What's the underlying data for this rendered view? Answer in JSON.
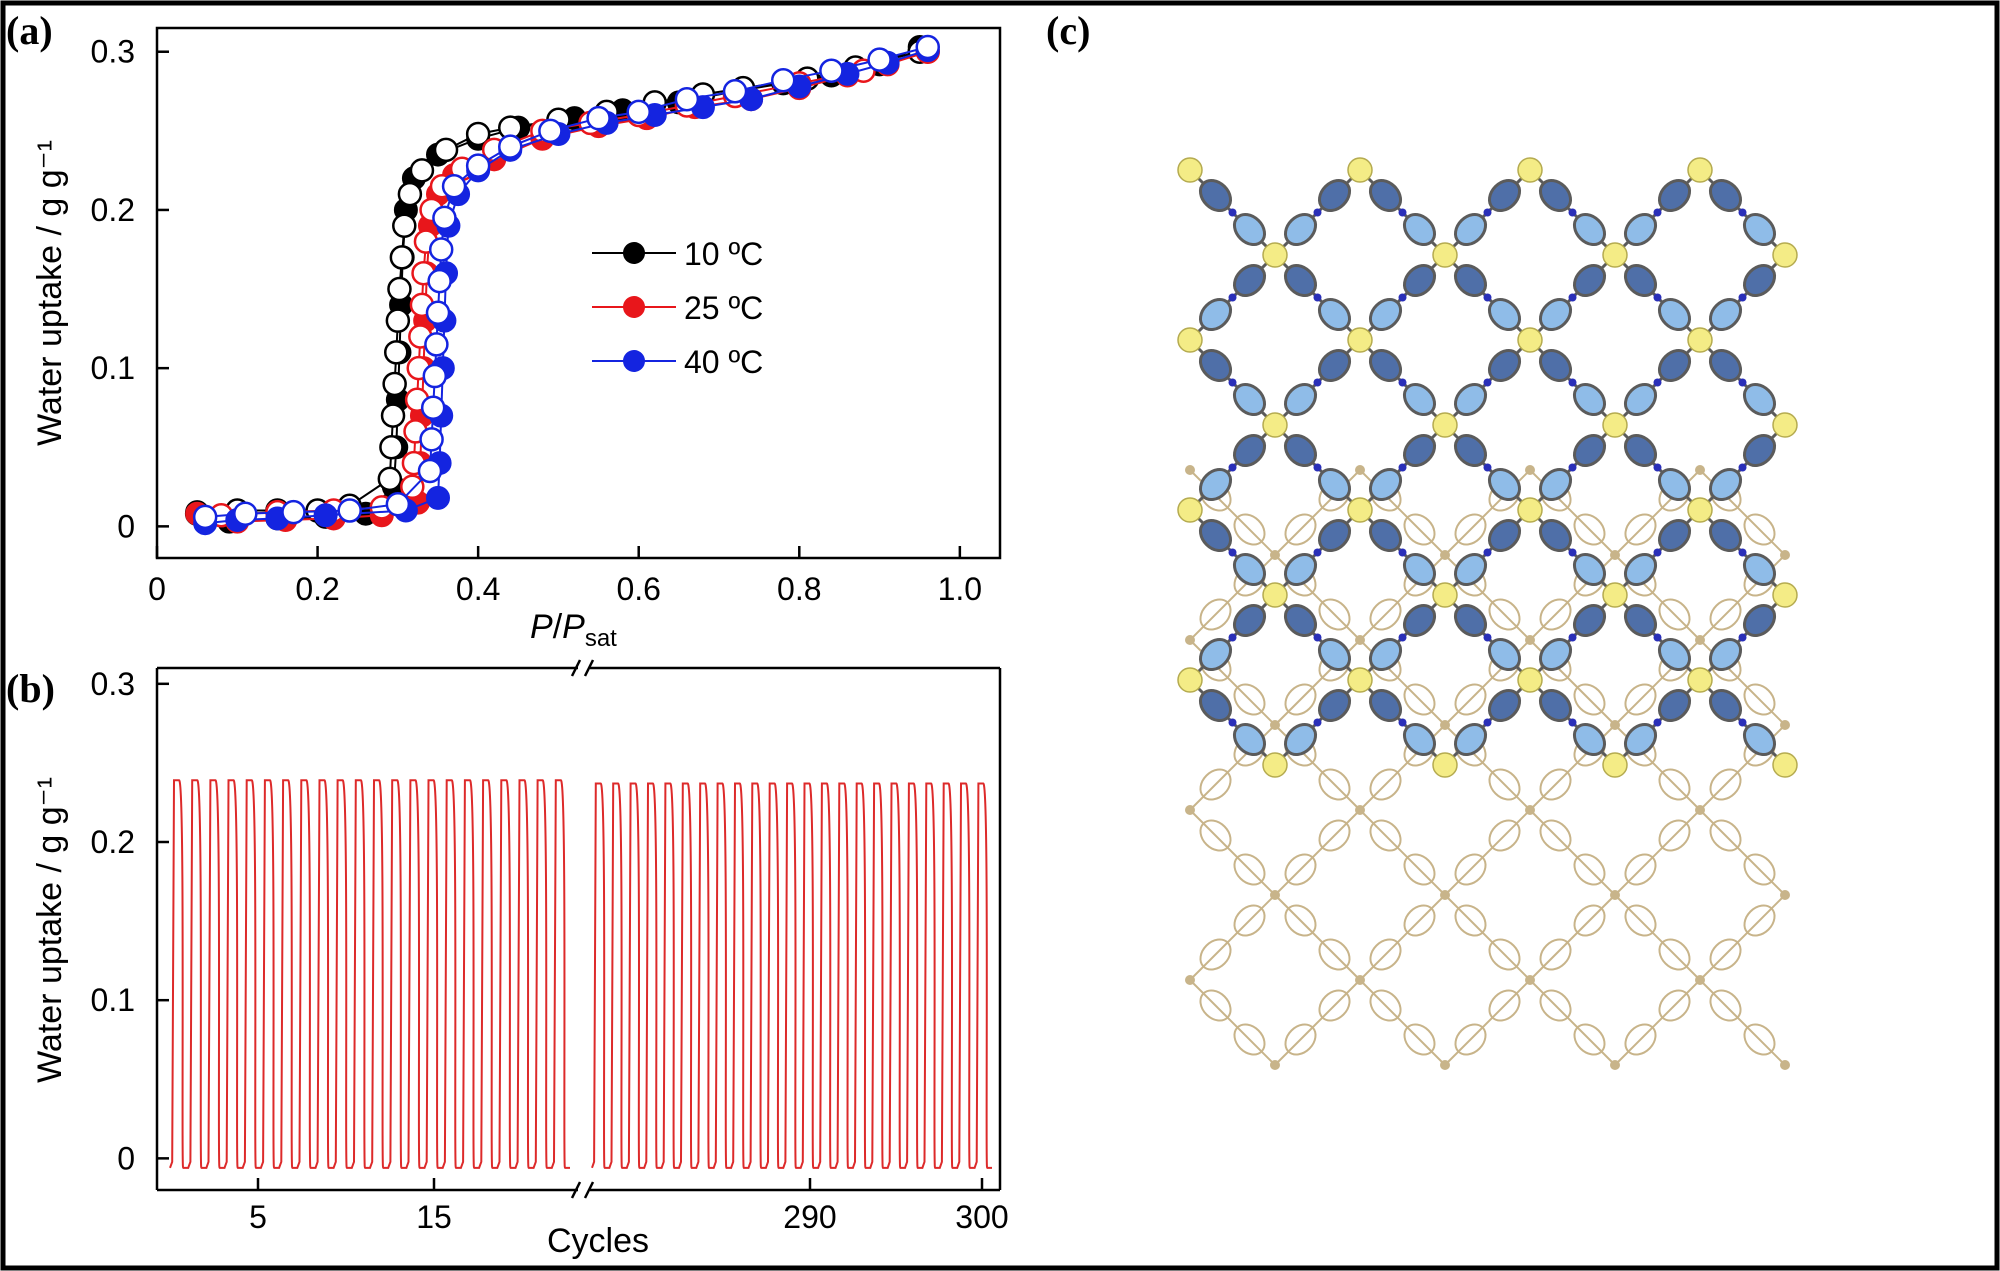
{
  "panel_labels": {
    "a": "(a)",
    "b": "(b)",
    "c": "(c)"
  },
  "colors": {
    "10": "#000000",
    "25": "#e8161b",
    "40": "#1424e0",
    "cycle_line": "#dd2a2a",
    "node": "#f4ec86",
    "ring_dark": "#4f6fa8",
    "ring_light": "#8fbce8",
    "rod": "#5b5b5b",
    "N": "#2a2fb8",
    "framework2": "#c8b48a"
  },
  "chart_data": [
    {
      "type": "scatter",
      "panel": "(a)",
      "xlabel_main": "P",
      "xlabel_sep": "/",
      "xlabel_sub_base": "P",
      "xlabel_sub": "sat",
      "ylabel": "Water uptake / g g⁻¹",
      "xlim": [
        0,
        1.05
      ],
      "ylim": [
        -0.02,
        0.315
      ],
      "xticks": [
        "0",
        "0.2",
        "0.4",
        "0.6",
        "0.8",
        "1.0"
      ],
      "yticks": [
        "0",
        "0.1",
        "0.2",
        "0.3"
      ],
      "legend_position": "center-right",
      "series": [
        {
          "name": "10 ºC",
          "color_key": "10",
          "adsorption": [
            [
              0.05,
              0.009
            ],
            [
              0.09,
              0.003
            ],
            [
              0.15,
              0.005
            ],
            [
              0.21,
              0.006
            ],
            [
              0.26,
              0.008
            ],
            [
              0.295,
              0.025
            ],
            [
              0.298,
              0.05
            ],
            [
              0.3,
              0.08
            ],
            [
              0.302,
              0.11
            ],
            [
              0.304,
              0.14
            ],
            [
              0.306,
              0.17
            ],
            [
              0.31,
              0.2
            ],
            [
              0.32,
              0.22
            ],
            [
              0.35,
              0.235
            ],
            [
              0.4,
              0.245
            ],
            [
              0.45,
              0.252
            ],
            [
              0.52,
              0.258
            ],
            [
              0.58,
              0.263
            ],
            [
              0.65,
              0.268
            ],
            [
              0.72,
              0.275
            ],
            [
              0.78,
              0.28
            ],
            [
              0.84,
              0.285
            ],
            [
              0.9,
              0.292
            ],
            [
              0.95,
              0.303
            ]
          ],
          "desorption": [
            [
              0.95,
              0.3
            ],
            [
              0.87,
              0.29
            ],
            [
              0.81,
              0.283
            ],
            [
              0.73,
              0.277
            ],
            [
              0.68,
              0.273
            ],
            [
              0.62,
              0.268
            ],
            [
              0.56,
              0.262
            ],
            [
              0.5,
              0.257
            ],
            [
              0.44,
              0.252
            ],
            [
              0.4,
              0.248
            ],
            [
              0.36,
              0.238
            ],
            [
              0.33,
              0.225
            ],
            [
              0.315,
              0.21
            ],
            [
              0.308,
              0.19
            ],
            [
              0.305,
              0.17
            ],
            [
              0.302,
              0.15
            ],
            [
              0.3,
              0.13
            ],
            [
              0.298,
              0.11
            ],
            [
              0.296,
              0.09
            ],
            [
              0.294,
              0.07
            ],
            [
              0.292,
              0.05
            ],
            [
              0.29,
              0.03
            ],
            [
              0.24,
              0.013
            ],
            [
              0.2,
              0.01
            ],
            [
              0.15,
              0.01
            ],
            [
              0.1,
              0.01
            ],
            [
              0.05,
              0.008
            ]
          ]
        },
        {
          "name": "25 ºC",
          "color_key": "25",
          "adsorption": [
            [
              0.05,
              0.008
            ],
            [
              0.1,
              0.003
            ],
            [
              0.16,
              0.004
            ],
            [
              0.22,
              0.005
            ],
            [
              0.28,
              0.007
            ],
            [
              0.325,
              0.015
            ],
            [
              0.328,
              0.04
            ],
            [
              0.33,
              0.07
            ],
            [
              0.332,
              0.1
            ],
            [
              0.334,
              0.13
            ],
            [
              0.336,
              0.16
            ],
            [
              0.34,
              0.19
            ],
            [
              0.35,
              0.21
            ],
            [
              0.37,
              0.222
            ],
            [
              0.42,
              0.232
            ],
            [
              0.48,
              0.245
            ],
            [
              0.55,
              0.253
            ],
            [
              0.61,
              0.258
            ],
            [
              0.67,
              0.265
            ],
            [
              0.74,
              0.27
            ],
            [
              0.8,
              0.277
            ],
            [
              0.86,
              0.285
            ],
            [
              0.91,
              0.292
            ],
            [
              0.96,
              0.3
            ]
          ],
          "desorption": [
            [
              0.96,
              0.3
            ],
            [
              0.88,
              0.288
            ],
            [
              0.8,
              0.28
            ],
            [
              0.72,
              0.272
            ],
            [
              0.66,
              0.266
            ],
            [
              0.6,
              0.26
            ],
            [
              0.54,
              0.255
            ],
            [
              0.48,
              0.25
            ],
            [
              0.42,
              0.238
            ],
            [
              0.38,
              0.226
            ],
            [
              0.355,
              0.215
            ],
            [
              0.342,
              0.2
            ],
            [
              0.335,
              0.18
            ],
            [
              0.332,
              0.16
            ],
            [
              0.33,
              0.14
            ],
            [
              0.328,
              0.12
            ],
            [
              0.326,
              0.1
            ],
            [
              0.324,
              0.08
            ],
            [
              0.322,
              0.06
            ],
            [
              0.32,
              0.04
            ],
            [
              0.318,
              0.025
            ],
            [
              0.28,
              0.012
            ],
            [
              0.22,
              0.01
            ],
            [
              0.15,
              0.009
            ],
            [
              0.08,
              0.007
            ]
          ]
        },
        {
          "name": "40 ºC",
          "color_key": "40",
          "adsorption": [
            [
              0.06,
              0.002
            ],
            [
              0.1,
              0.004
            ],
            [
              0.15,
              0.005
            ],
            [
              0.21,
              0.007
            ],
            [
              0.31,
              0.01
            ],
            [
              0.35,
              0.018
            ],
            [
              0.352,
              0.04
            ],
            [
              0.354,
              0.07
            ],
            [
              0.356,
              0.1
            ],
            [
              0.358,
              0.13
            ],
            [
              0.36,
              0.16
            ],
            [
              0.363,
              0.19
            ],
            [
              0.375,
              0.21
            ],
            [
              0.4,
              0.225
            ],
            [
              0.44,
              0.238
            ],
            [
              0.5,
              0.248
            ],
            [
              0.56,
              0.255
            ],
            [
              0.62,
              0.26
            ],
            [
              0.68,
              0.265
            ],
            [
              0.74,
              0.27
            ],
            [
              0.8,
              0.278
            ],
            [
              0.86,
              0.286
            ],
            [
              0.91,
              0.293
            ],
            [
              0.96,
              0.301
            ]
          ],
          "desorption": [
            [
              0.96,
              0.303
            ],
            [
              0.9,
              0.295
            ],
            [
              0.84,
              0.288
            ],
            [
              0.78,
              0.282
            ],
            [
              0.72,
              0.275
            ],
            [
              0.66,
              0.27
            ],
            [
              0.6,
              0.262
            ],
            [
              0.55,
              0.258
            ],
            [
              0.49,
              0.25
            ],
            [
              0.44,
              0.24
            ],
            [
              0.4,
              0.228
            ],
            [
              0.37,
              0.215
            ],
            [
              0.358,
              0.195
            ],
            [
              0.354,
              0.175
            ],
            [
              0.352,
              0.155
            ],
            [
              0.35,
              0.135
            ],
            [
              0.348,
              0.115
            ],
            [
              0.346,
              0.095
            ],
            [
              0.344,
              0.075
            ],
            [
              0.342,
              0.055
            ],
            [
              0.34,
              0.035
            ],
            [
              0.3,
              0.014
            ],
            [
              0.24,
              0.01
            ],
            [
              0.17,
              0.009
            ],
            [
              0.11,
              0.008
            ],
            [
              0.06,
              0.006
            ]
          ]
        }
      ]
    },
    {
      "type": "line",
      "panel": "(b)",
      "xlabel": "Cycles",
      "ylabel": "Water uptake / g g⁻¹",
      "ylim": [
        -0.02,
        0.31
      ],
      "yticks": [
        "0",
        "0.1",
        "0.2",
        "0.3"
      ],
      "xticks": [
        "5",
        "15",
        "290",
        "300"
      ],
      "axis_break": true,
      "series": [
        {
          "segment": "cycles 1-22",
          "cycles": 22,
          "max_uptake": 0.239,
          "min_uptake": -0.006
        },
        {
          "segment": "cycles 279-301",
          "cycles": 23,
          "max_uptake": 0.237,
          "min_uptake": -0.006
        }
      ]
    }
  ]
}
